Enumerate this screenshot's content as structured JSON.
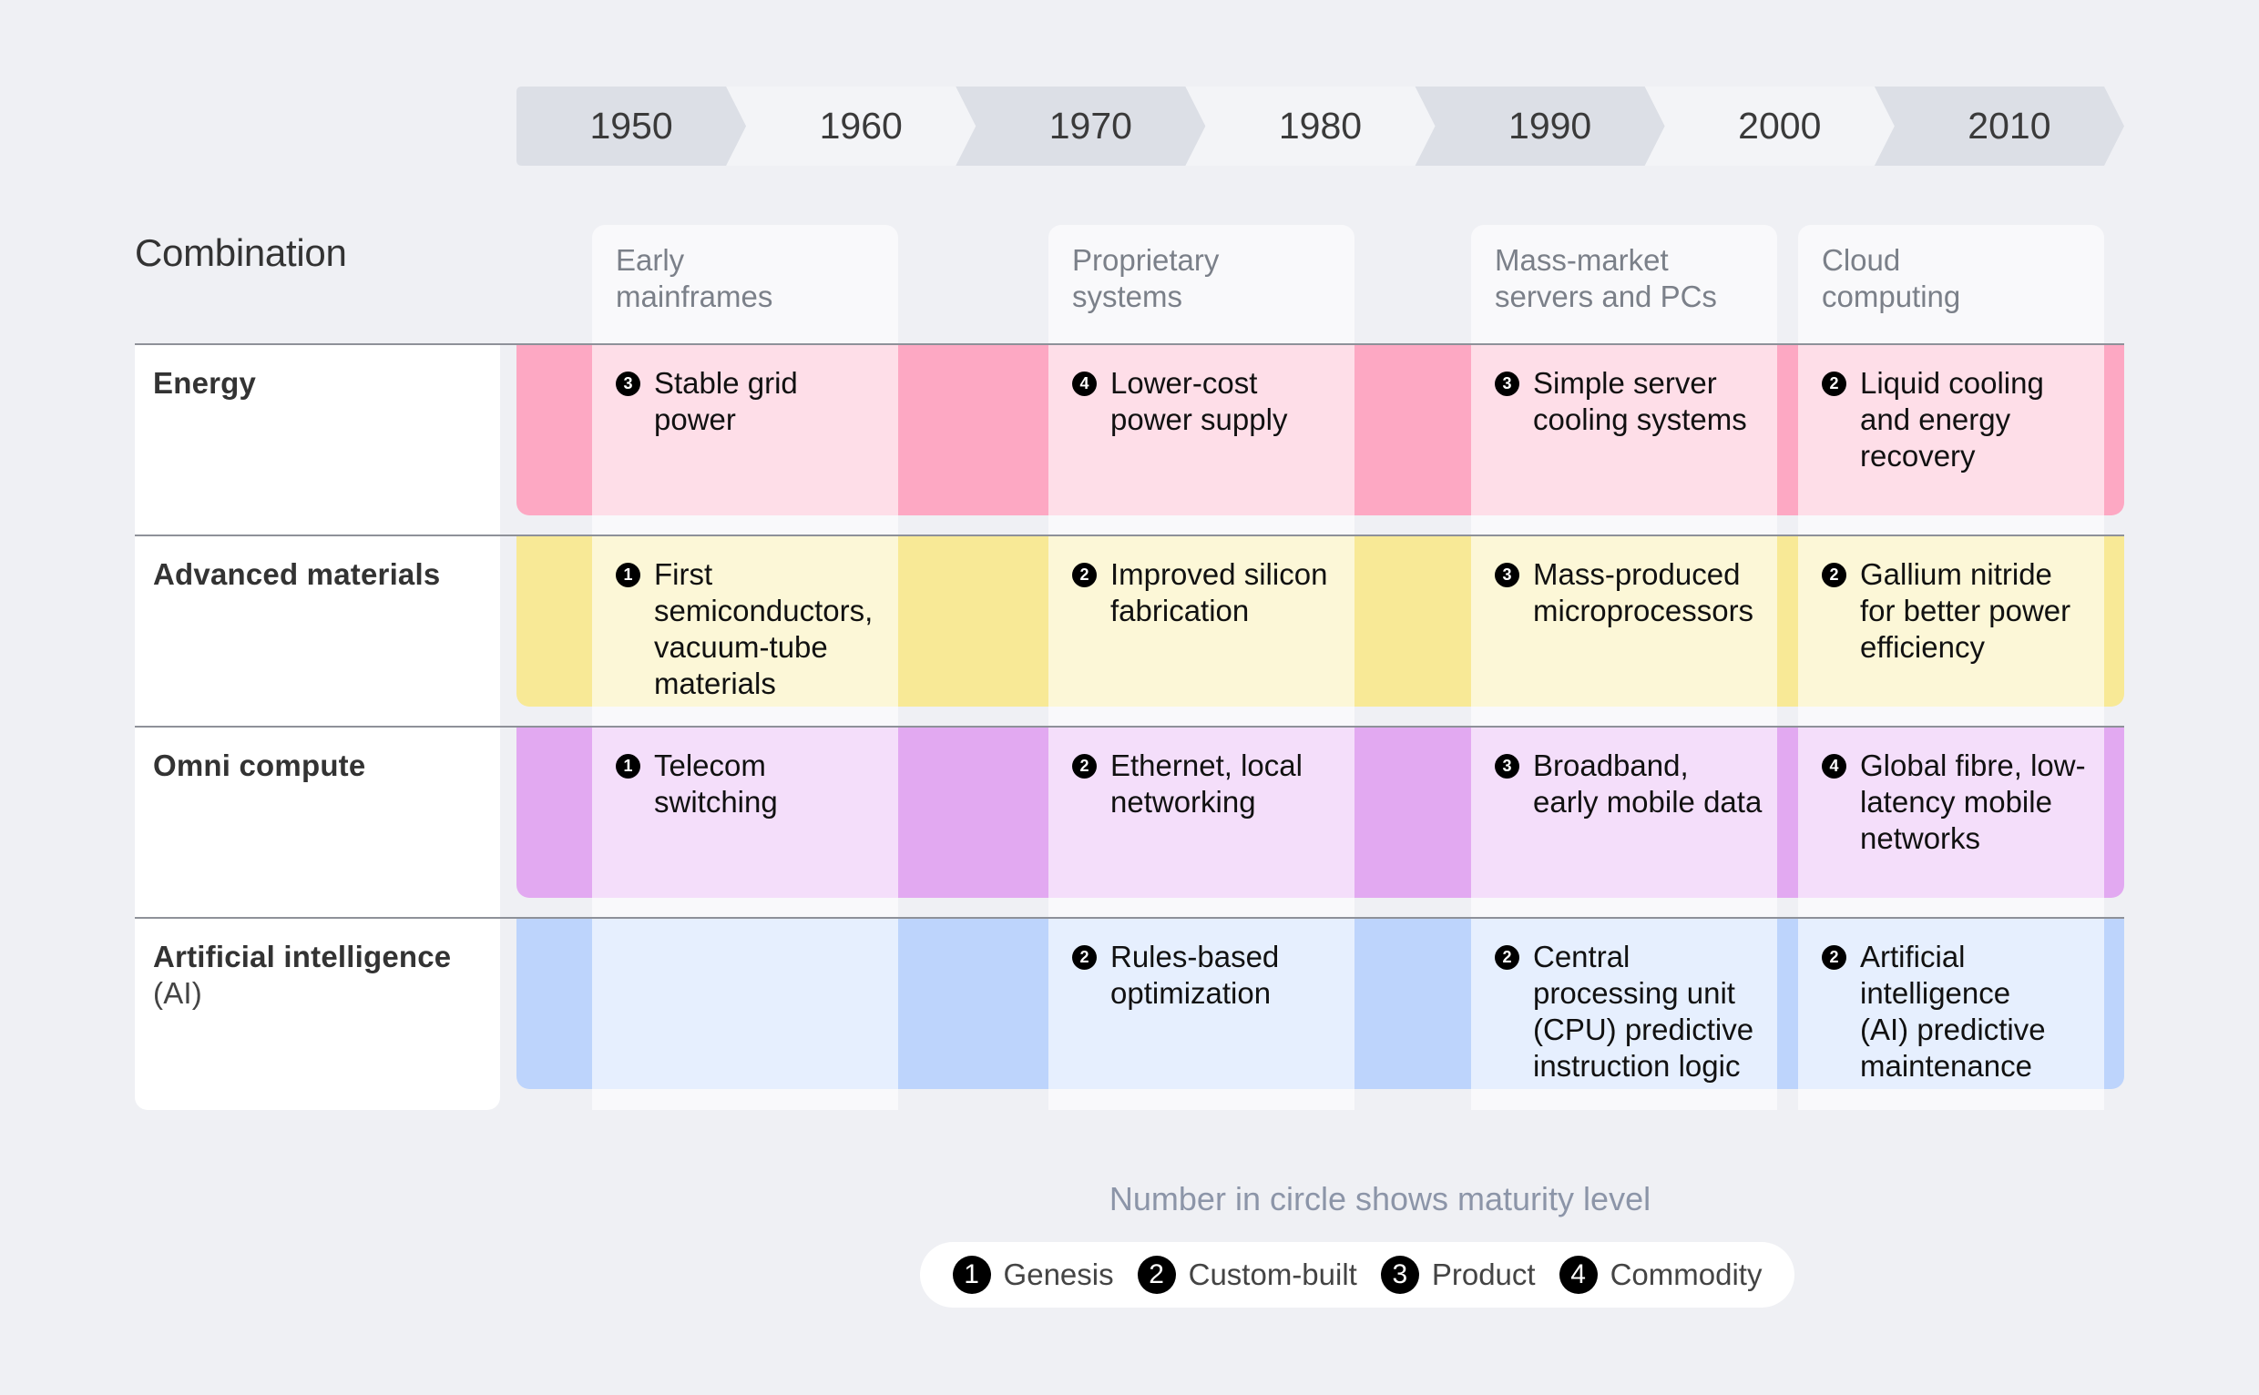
{
  "timeline": {
    "years": [
      "1950",
      "1960",
      "1970",
      "1980",
      "1990",
      "2000",
      "2010"
    ],
    "colors": [
      "#dcdfe6",
      "#f3f4f7"
    ]
  },
  "title": "Combination",
  "columns": [
    {
      "label": "Early\nmainframes"
    },
    {
      "label": "Proprietary\nsystems"
    },
    {
      "label": "Mass-market\nservers and PCs"
    },
    {
      "label": "Cloud\ncomputing"
    }
  ],
  "rows": [
    {
      "label": "Energy",
      "sub": "",
      "color": "#fda8c3",
      "cells": [
        {
          "level": "3",
          "text": "Stable grid\npower"
        },
        {
          "level": "4",
          "text": "Lower-cost\npower supply"
        },
        {
          "level": "3",
          "text": "Simple server\ncooling systems"
        },
        {
          "level": "2",
          "text": "Liquid cooling\nand energy\nrecovery"
        }
      ]
    },
    {
      "label": "Advanced materials",
      "sub": "",
      "color": "#f8e996",
      "cells": [
        {
          "level": "1",
          "text": "First\nsemiconductors,\nvacuum-tube\nmaterials"
        },
        {
          "level": "2",
          "text": "Improved silicon\nfabrication"
        },
        {
          "level": "3",
          "text": "Mass-produced\nmicroprocessors"
        },
        {
          "level": "2",
          "text": "Gallium nitride\nfor better power\nefficiency"
        }
      ]
    },
    {
      "label": "Omni compute",
      "sub": "",
      "color": "#e2a9f1",
      "cells": [
        {
          "level": "1",
          "text": "Telecom\nswitching"
        },
        {
          "level": "2",
          "text": "Ethernet, local\nnetworking"
        },
        {
          "level": "3",
          "text": "Broadband,\nearly mobile data"
        },
        {
          "level": "4",
          "text": "Global fibre, low-\nlatency mobile\nnetworks"
        }
      ]
    },
    {
      "label": "Artificial intelligence",
      "sub": "(AI)",
      "color": "#bdd4fc",
      "cells": [
        null,
        {
          "level": "2",
          "text": "Rules-based\noptimization"
        },
        {
          "level": "2",
          "text": "Central\nprocessing unit\n(CPU) predictive\ninstruction logic"
        },
        {
          "level": "2",
          "text": "Artificial\nintelligence\n(AI) predictive\nmaintenance"
        }
      ]
    }
  ],
  "legend": {
    "title": "Number in circle shows maturity level",
    "items": [
      {
        "level": "1",
        "label": "Genesis"
      },
      {
        "level": "2",
        "label": "Custom-built"
      },
      {
        "level": "3",
        "label": "Product"
      },
      {
        "level": "4",
        "label": "Commodity"
      }
    ]
  }
}
